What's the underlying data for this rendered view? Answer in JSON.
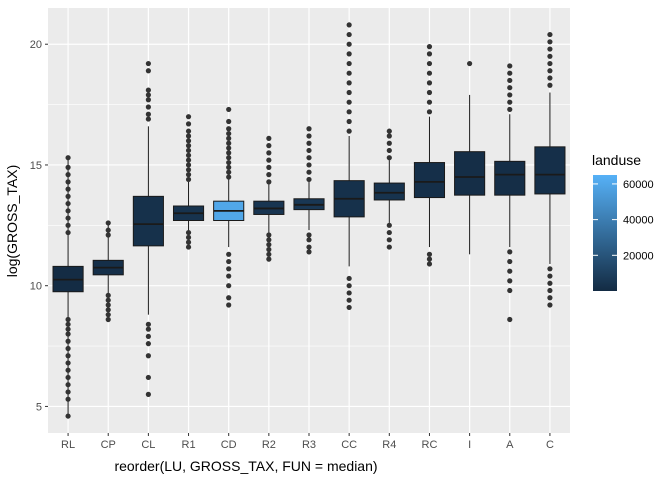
{
  "chart_data": {
    "type": "boxplot",
    "xlabel": "reorder(LU, GROSS_TAX, FUN = median)",
    "ylabel": "log(GROSS_TAX)",
    "ylim": [
      3.9,
      21.5
    ],
    "y_ticks": [
      5,
      10,
      15,
      20
    ],
    "categories": [
      "RL",
      "CP",
      "CL",
      "R1",
      "CD",
      "R2",
      "R3",
      "CC",
      "R4",
      "RC",
      "I",
      "A",
      "C"
    ],
    "boxes": [
      {
        "category": "RL",
        "lower_whisker": 4.6,
        "q1": 9.75,
        "median": 10.25,
        "q3": 10.8,
        "upper_whisker": 15.3,
        "landuse": 500,
        "outliers": [
          4.6,
          5.3,
          5.6,
          5.9,
          6.2,
          6.5,
          6.8,
          7.1,
          7.4,
          7.7,
          8.0,
          8.2,
          8.4,
          8.6,
          12.2,
          12.5,
          12.8,
          13.1,
          13.4,
          13.7,
          14.0,
          14.3,
          14.6,
          14.9,
          15.3
        ]
      },
      {
        "category": "CP",
        "lower_whisker": 8.7,
        "q1": 10.45,
        "median": 10.75,
        "q3": 11.05,
        "upper_whisker": 12.6,
        "landuse": 2000,
        "outliers": [
          8.6,
          8.8,
          9.0,
          9.2,
          9.4,
          9.6,
          12.1,
          12.3,
          12.6
        ]
      },
      {
        "category": "CL",
        "lower_whisker": 8.8,
        "q1": 11.65,
        "median": 12.55,
        "q3": 13.7,
        "upper_whisker": 16.6,
        "landuse": 3000,
        "outliers": [
          5.5,
          6.2,
          7.1,
          7.6,
          7.9,
          8.2,
          8.4,
          16.9,
          17.1,
          17.4,
          17.7,
          17.9,
          18.1,
          18.9,
          19.2
        ]
      },
      {
        "category": "R1",
        "lower_whisker": 11.6,
        "q1": 12.7,
        "median": 13.0,
        "q3": 13.3,
        "upper_whisker": 14.3,
        "landuse": 4000,
        "outliers": [
          11.6,
          11.8,
          12.0,
          12.2,
          14.4,
          14.6,
          14.8,
          15.0,
          15.2,
          15.4,
          15.6,
          15.8,
          16.0,
          16.2,
          16.4,
          16.7,
          17.0
        ]
      },
      {
        "category": "CD",
        "lower_whisker": 11.6,
        "q1": 12.7,
        "median": 13.1,
        "q3": 13.5,
        "upper_whisker": 14.4,
        "landuse": 60000,
        "outliers": [
          9.2,
          9.5,
          10.0,
          10.4,
          10.7,
          11.0,
          11.3,
          14.5,
          14.7,
          14.9,
          15.1,
          15.3,
          15.5,
          15.7,
          15.9,
          16.1,
          16.3,
          16.5,
          16.8,
          17.3
        ]
      },
      {
        "category": "R2",
        "lower_whisker": 12.1,
        "q1": 12.95,
        "median": 13.2,
        "q3": 13.5,
        "upper_whisker": 14.2,
        "landuse": 5000,
        "outliers": [
          11.1,
          11.3,
          11.5,
          11.7,
          11.9,
          12.1,
          14.3,
          14.6,
          14.9,
          15.2,
          15.5,
          15.8,
          16.1
        ]
      },
      {
        "category": "R3",
        "lower_whisker": 12.3,
        "q1": 13.15,
        "median": 13.35,
        "q3": 13.6,
        "upper_whisker": 14.3,
        "landuse": 6000,
        "outliers": [
          11.4,
          11.6,
          11.9,
          12.1,
          14.4,
          14.7,
          15.0,
          15.3,
          15.6,
          15.9,
          16.2,
          16.5
        ]
      },
      {
        "category": "CC",
        "lower_whisker": 10.8,
        "q1": 12.85,
        "median": 13.6,
        "q3": 14.35,
        "upper_whisker": 16.2,
        "landuse": 3000,
        "outliers": [
          9.1,
          9.4,
          9.7,
          10.0,
          10.3,
          16.4,
          16.8,
          17.2,
          17.6,
          18.0,
          18.4,
          18.8,
          19.2,
          19.6,
          20.0,
          20.4,
          20.8
        ]
      },
      {
        "category": "R4",
        "lower_whisker": 12.6,
        "q1": 13.55,
        "median": 13.85,
        "q3": 14.25,
        "upper_whisker": 15.2,
        "landuse": 4000,
        "outliers": [
          11.6,
          11.9,
          12.2,
          12.5,
          15.3,
          15.6,
          15.9,
          16.2,
          16.4
        ]
      },
      {
        "category": "RC",
        "lower_whisker": 11.6,
        "q1": 13.65,
        "median": 14.3,
        "q3": 15.1,
        "upper_whisker": 17.0,
        "landuse": 2000,
        "outliers": [
          10.9,
          11.1,
          11.3,
          17.2,
          17.6,
          18.0,
          18.4,
          18.8,
          19.2,
          19.6,
          19.9
        ]
      },
      {
        "category": "I",
        "lower_whisker": 11.3,
        "q1": 13.75,
        "median": 14.5,
        "q3": 15.55,
        "upper_whisker": 17.9,
        "landuse": 1500,
        "outliers": [
          19.2
        ]
      },
      {
        "category": "A",
        "lower_whisker": 11.6,
        "q1": 13.75,
        "median": 14.6,
        "q3": 15.15,
        "upper_whisker": 17.1,
        "landuse": 1500,
        "outliers": [
          8.6,
          9.8,
          10.2,
          10.6,
          11.0,
          11.4,
          17.3,
          17.6,
          17.9,
          18.2,
          18.5,
          18.8,
          19.1
        ]
      },
      {
        "category": "C",
        "lower_whisker": 10.9,
        "q1": 13.8,
        "median": 14.6,
        "q3": 15.75,
        "upper_whisker": 18.0,
        "landuse": 2000,
        "outliers": [
          9.2,
          9.5,
          9.8,
          10.1,
          10.4,
          10.7,
          18.3,
          18.6,
          18.9,
          19.2,
          19.5,
          19.8,
          20.1,
          20.4
        ]
      }
    ],
    "legend": {
      "title": "landuse",
      "type": "colorbar",
      "placement": "right",
      "range": [
        0,
        65000
      ],
      "ticks": [
        20000,
        40000,
        60000
      ],
      "tick_labels": [
        "20000",
        "40000",
        "60000"
      ],
      "low_color": "#132B43",
      "high_color": "#56B1F7"
    },
    "grid": true,
    "panel_background": "#EBEBEB",
    "grid_color": "#FFFFFF",
    "outlier_color": "#333333",
    "line_color": "#1A1A1A"
  }
}
